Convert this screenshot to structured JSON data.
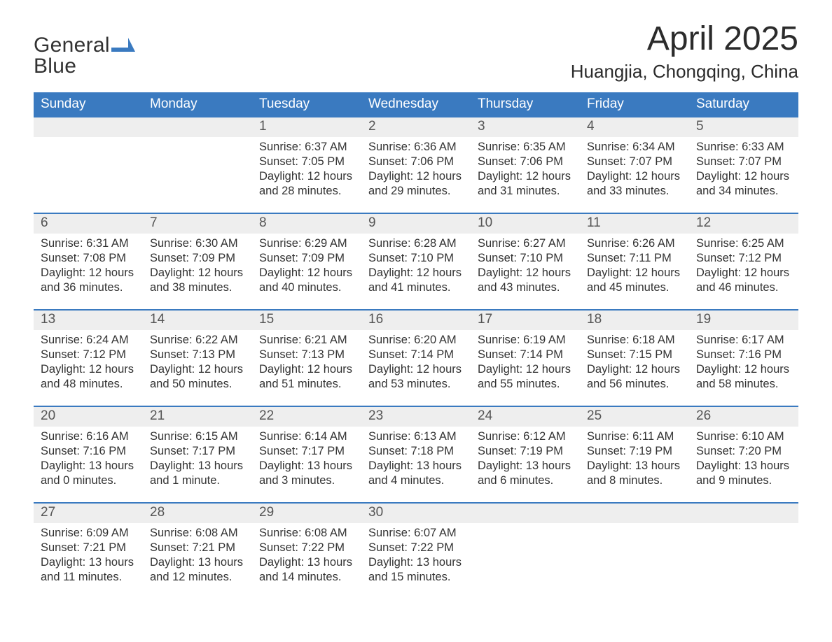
{
  "brand": {
    "word1": "General",
    "word2": "Blue",
    "color_text": "#323232",
    "color_shape": "#3a7ac0"
  },
  "title": {
    "month": "April 2025",
    "location": "Huangjia, Chongqing, China"
  },
  "colors": {
    "header_bg": "#3a7ac0",
    "header_text": "#ffffff",
    "numrow_bg": "#eeeeee",
    "week_divider": "#3a7ac0",
    "body_text": "#333333",
    "background": "#ffffff"
  },
  "day_names": [
    "Sunday",
    "Monday",
    "Tuesday",
    "Wednesday",
    "Thursday",
    "Friday",
    "Saturday"
  ],
  "weeks": [
    [
      {
        "blank": true
      },
      {
        "blank": true
      },
      {
        "n": "1",
        "sunrise": "Sunrise: 6:37 AM",
        "sunset": "Sunset: 7:05 PM",
        "day1": "Daylight: 12 hours",
        "day2": "and 28 minutes."
      },
      {
        "n": "2",
        "sunrise": "Sunrise: 6:36 AM",
        "sunset": "Sunset: 7:06 PM",
        "day1": "Daylight: 12 hours",
        "day2": "and 29 minutes."
      },
      {
        "n": "3",
        "sunrise": "Sunrise: 6:35 AM",
        "sunset": "Sunset: 7:06 PM",
        "day1": "Daylight: 12 hours",
        "day2": "and 31 minutes."
      },
      {
        "n": "4",
        "sunrise": "Sunrise: 6:34 AM",
        "sunset": "Sunset: 7:07 PM",
        "day1": "Daylight: 12 hours",
        "day2": "and 33 minutes."
      },
      {
        "n": "5",
        "sunrise": "Sunrise: 6:33 AM",
        "sunset": "Sunset: 7:07 PM",
        "day1": "Daylight: 12 hours",
        "day2": "and 34 minutes."
      }
    ],
    [
      {
        "n": "6",
        "sunrise": "Sunrise: 6:31 AM",
        "sunset": "Sunset: 7:08 PM",
        "day1": "Daylight: 12 hours",
        "day2": "and 36 minutes."
      },
      {
        "n": "7",
        "sunrise": "Sunrise: 6:30 AM",
        "sunset": "Sunset: 7:09 PM",
        "day1": "Daylight: 12 hours",
        "day2": "and 38 minutes."
      },
      {
        "n": "8",
        "sunrise": "Sunrise: 6:29 AM",
        "sunset": "Sunset: 7:09 PM",
        "day1": "Daylight: 12 hours",
        "day2": "and 40 minutes."
      },
      {
        "n": "9",
        "sunrise": "Sunrise: 6:28 AM",
        "sunset": "Sunset: 7:10 PM",
        "day1": "Daylight: 12 hours",
        "day2": "and 41 minutes."
      },
      {
        "n": "10",
        "sunrise": "Sunrise: 6:27 AM",
        "sunset": "Sunset: 7:10 PM",
        "day1": "Daylight: 12 hours",
        "day2": "and 43 minutes."
      },
      {
        "n": "11",
        "sunrise": "Sunrise: 6:26 AM",
        "sunset": "Sunset: 7:11 PM",
        "day1": "Daylight: 12 hours",
        "day2": "and 45 minutes."
      },
      {
        "n": "12",
        "sunrise": "Sunrise: 6:25 AM",
        "sunset": "Sunset: 7:12 PM",
        "day1": "Daylight: 12 hours",
        "day2": "and 46 minutes."
      }
    ],
    [
      {
        "n": "13",
        "sunrise": "Sunrise: 6:24 AM",
        "sunset": "Sunset: 7:12 PM",
        "day1": "Daylight: 12 hours",
        "day2": "and 48 minutes."
      },
      {
        "n": "14",
        "sunrise": "Sunrise: 6:22 AM",
        "sunset": "Sunset: 7:13 PM",
        "day1": "Daylight: 12 hours",
        "day2": "and 50 minutes."
      },
      {
        "n": "15",
        "sunrise": "Sunrise: 6:21 AM",
        "sunset": "Sunset: 7:13 PM",
        "day1": "Daylight: 12 hours",
        "day2": "and 51 minutes."
      },
      {
        "n": "16",
        "sunrise": "Sunrise: 6:20 AM",
        "sunset": "Sunset: 7:14 PM",
        "day1": "Daylight: 12 hours",
        "day2": "and 53 minutes."
      },
      {
        "n": "17",
        "sunrise": "Sunrise: 6:19 AM",
        "sunset": "Sunset: 7:14 PM",
        "day1": "Daylight: 12 hours",
        "day2": "and 55 minutes."
      },
      {
        "n": "18",
        "sunrise": "Sunrise: 6:18 AM",
        "sunset": "Sunset: 7:15 PM",
        "day1": "Daylight: 12 hours",
        "day2": "and 56 minutes."
      },
      {
        "n": "19",
        "sunrise": "Sunrise: 6:17 AM",
        "sunset": "Sunset: 7:16 PM",
        "day1": "Daylight: 12 hours",
        "day2": "and 58 minutes."
      }
    ],
    [
      {
        "n": "20",
        "sunrise": "Sunrise: 6:16 AM",
        "sunset": "Sunset: 7:16 PM",
        "day1": "Daylight: 13 hours",
        "day2": "and 0 minutes."
      },
      {
        "n": "21",
        "sunrise": "Sunrise: 6:15 AM",
        "sunset": "Sunset: 7:17 PM",
        "day1": "Daylight: 13 hours",
        "day2": "and 1 minute."
      },
      {
        "n": "22",
        "sunrise": "Sunrise: 6:14 AM",
        "sunset": "Sunset: 7:17 PM",
        "day1": "Daylight: 13 hours",
        "day2": "and 3 minutes."
      },
      {
        "n": "23",
        "sunrise": "Sunrise: 6:13 AM",
        "sunset": "Sunset: 7:18 PM",
        "day1": "Daylight: 13 hours",
        "day2": "and 4 minutes."
      },
      {
        "n": "24",
        "sunrise": "Sunrise: 6:12 AM",
        "sunset": "Sunset: 7:19 PM",
        "day1": "Daylight: 13 hours",
        "day2": "and 6 minutes."
      },
      {
        "n": "25",
        "sunrise": "Sunrise: 6:11 AM",
        "sunset": "Sunset: 7:19 PM",
        "day1": "Daylight: 13 hours",
        "day2": "and 8 minutes."
      },
      {
        "n": "26",
        "sunrise": "Sunrise: 6:10 AM",
        "sunset": "Sunset: 7:20 PM",
        "day1": "Daylight: 13 hours",
        "day2": "and 9 minutes."
      }
    ],
    [
      {
        "n": "27",
        "sunrise": "Sunrise: 6:09 AM",
        "sunset": "Sunset: 7:21 PM",
        "day1": "Daylight: 13 hours",
        "day2": "and 11 minutes."
      },
      {
        "n": "28",
        "sunrise": "Sunrise: 6:08 AM",
        "sunset": "Sunset: 7:21 PM",
        "day1": "Daylight: 13 hours",
        "day2": "and 12 minutes."
      },
      {
        "n": "29",
        "sunrise": "Sunrise: 6:08 AM",
        "sunset": "Sunset: 7:22 PM",
        "day1": "Daylight: 13 hours",
        "day2": "and 14 minutes."
      },
      {
        "n": "30",
        "sunrise": "Sunrise: 6:07 AM",
        "sunset": "Sunset: 7:22 PM",
        "day1": "Daylight: 13 hours",
        "day2": "and 15 minutes."
      },
      {
        "blank": true
      },
      {
        "blank": true
      },
      {
        "blank": true
      }
    ]
  ]
}
